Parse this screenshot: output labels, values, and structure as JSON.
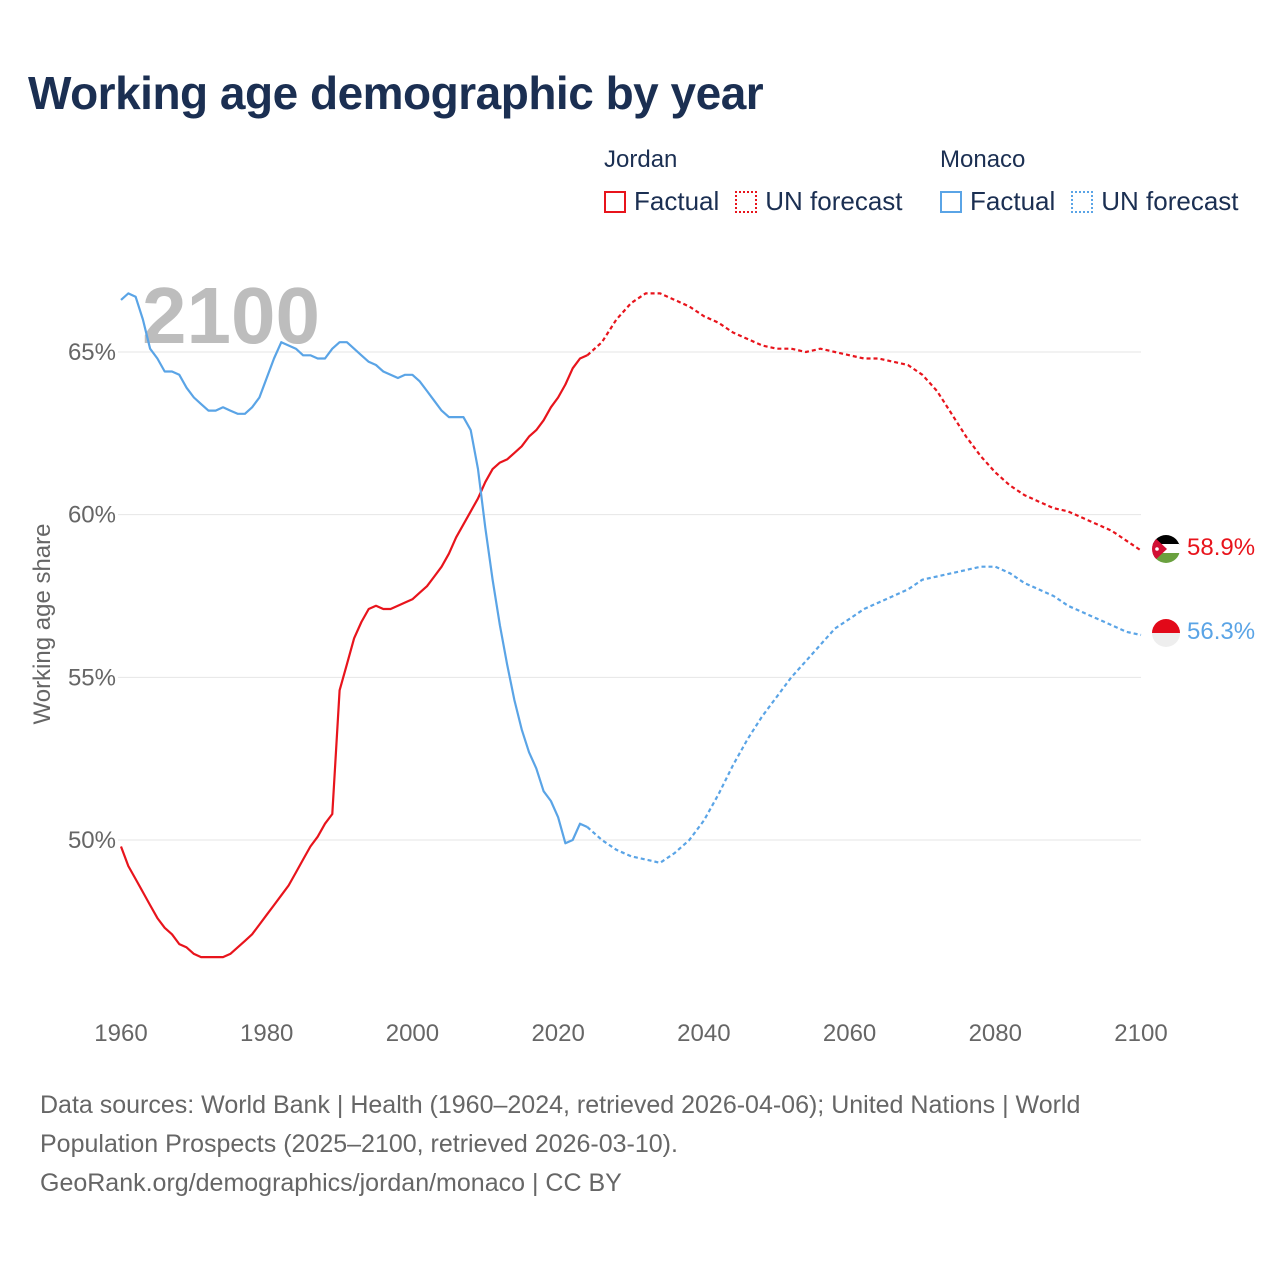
{
  "title": "Working age demographic by year",
  "legend": {
    "jordan": {
      "name": "Jordan",
      "factual": "Factual",
      "forecast": "UN forecast",
      "color": "#e8141c"
    },
    "monaco": {
      "name": "Monaco",
      "factual": "Factual",
      "forecast": "UN forecast",
      "color": "#5aa4e6"
    }
  },
  "sources": {
    "line1": "Data sources: World Bank | Health (1960–2024, retrieved 2026-04-06); United Nations | World",
    "line2": "Population Prospects (2025–2100, retrieved 2026-03-10).",
    "line3": "GeoRank.org/demographics/jordan/monaco | CC BY"
  },
  "chart_data": {
    "type": "line",
    "title": "Working age demographic by year",
    "ylabel": "Working age share",
    "xlabel": "",
    "year_label": "2100",
    "xlim": [
      1960,
      2100
    ],
    "ylim": [
      45,
      67.5
    ],
    "x_ticks": [
      1960,
      1980,
      2000,
      2020,
      2040,
      2060,
      2080,
      2100
    ],
    "x_tick_labels": [
      "1960",
      "1980",
      "2000",
      "2020",
      "2040",
      "2060",
      "2080",
      "2100"
    ],
    "y_ticks": [
      50,
      55,
      60,
      65
    ],
    "y_tick_labels": [
      "50%",
      "55%",
      "60%",
      "65%"
    ],
    "grid": true,
    "series": [
      {
        "name": "Jordan",
        "color": "#e8141c",
        "end_label": "58.9%",
        "factual": {
          "x": [
            1960,
            1961,
            1962,
            1963,
            1964,
            1965,
            1966,
            1967,
            1968,
            1969,
            1970,
            1971,
            1972,
            1973,
            1974,
            1975,
            1976,
            1977,
            1978,
            1979,
            1980,
            1981,
            1982,
            1983,
            1984,
            1985,
            1986,
            1987,
            1988,
            1989,
            1990,
            1991,
            1992,
            1993,
            1994,
            1995,
            1996,
            1997,
            1998,
            1999,
            2000,
            2001,
            2002,
            2003,
            2004,
            2005,
            2006,
            2007,
            2008,
            2009,
            2010,
            2011,
            2012,
            2013,
            2014,
            2015,
            2016,
            2017,
            2018,
            2019,
            2020,
            2021,
            2022,
            2023,
            2024
          ],
          "y": [
            49.8,
            49.2,
            48.8,
            48.4,
            48.0,
            47.6,
            47.3,
            47.1,
            46.8,
            46.7,
            46.5,
            46.4,
            46.4,
            46.4,
            46.4,
            46.5,
            46.7,
            46.9,
            47.1,
            47.4,
            47.7,
            48.0,
            48.3,
            48.6,
            49.0,
            49.4,
            49.8,
            50.1,
            50.5,
            50.8,
            54.6,
            55.4,
            56.2,
            56.7,
            57.1,
            57.2,
            57.1,
            57.1,
            57.2,
            57.3,
            57.4,
            57.6,
            57.8,
            58.1,
            58.4,
            58.8,
            59.3,
            59.7,
            60.1,
            60.5,
            61.0,
            61.4,
            61.6,
            61.7,
            61.9,
            62.1,
            62.4,
            62.6,
            62.9,
            63.3,
            63.6,
            64.0,
            64.5,
            64.8,
            64.9
          ],
          "style": "solid"
        },
        "forecast": {
          "x": [
            2024,
            2026,
            2028,
            2030,
            2032,
            2034,
            2036,
            2038,
            2040,
            2042,
            2044,
            2046,
            2048,
            2050,
            2052,
            2054,
            2056,
            2058,
            2060,
            2062,
            2064,
            2066,
            2068,
            2070,
            2072,
            2074,
            2076,
            2078,
            2080,
            2082,
            2084,
            2086,
            2088,
            2090,
            2092,
            2094,
            2096,
            2098,
            2100
          ],
          "y": [
            64.9,
            65.3,
            66.0,
            66.5,
            66.8,
            66.8,
            66.6,
            66.4,
            66.1,
            65.9,
            65.6,
            65.4,
            65.2,
            65.1,
            65.1,
            65.0,
            65.1,
            65.0,
            64.9,
            64.8,
            64.8,
            64.7,
            64.6,
            64.3,
            63.8,
            63.1,
            62.4,
            61.8,
            61.3,
            60.9,
            60.6,
            60.4,
            60.2,
            60.1,
            59.9,
            59.7,
            59.5,
            59.2,
            58.9
          ],
          "style": "dotted"
        }
      },
      {
        "name": "Monaco",
        "color": "#5aa4e6",
        "end_label": "56.3%",
        "factual": {
          "x": [
            1960,
            1961,
            1962,
            1963,
            1964,
            1965,
            1966,
            1967,
            1968,
            1969,
            1970,
            1971,
            1972,
            1973,
            1974,
            1975,
            1976,
            1977,
            1978,
            1979,
            1980,
            1981,
            1982,
            1983,
            1984,
            1985,
            1986,
            1987,
            1988,
            1989,
            1990,
            1991,
            1992,
            1993,
            1994,
            1995,
            1996,
            1997,
            1998,
            1999,
            2000,
            2001,
            2002,
            2003,
            2004,
            2005,
            2006,
            2007,
            2008,
            2009,
            2010,
            2011,
            2012,
            2013,
            2014,
            2015,
            2016,
            2017,
            2018,
            2019,
            2020,
            2021,
            2022,
            2023,
            2024
          ],
          "y": [
            66.6,
            66.8,
            66.7,
            66.0,
            65.1,
            64.8,
            64.4,
            64.4,
            64.3,
            63.9,
            63.6,
            63.4,
            63.2,
            63.2,
            63.3,
            63.2,
            63.1,
            63.1,
            63.3,
            63.6,
            64.2,
            64.8,
            65.3,
            65.2,
            65.1,
            64.9,
            64.9,
            64.8,
            64.8,
            65.1,
            65.3,
            65.3,
            65.1,
            64.9,
            64.7,
            64.6,
            64.4,
            64.3,
            64.2,
            64.3,
            64.3,
            64.1,
            63.8,
            63.5,
            63.2,
            63.0,
            63.0,
            63.0,
            62.6,
            61.4,
            59.6,
            58.0,
            56.6,
            55.4,
            54.3,
            53.4,
            52.7,
            52.2,
            51.5,
            51.2,
            50.7,
            49.9,
            50.0,
            50.5,
            50.4
          ],
          "style": "solid"
        },
        "forecast": {
          "x": [
            2024,
            2026,
            2028,
            2030,
            2032,
            2034,
            2036,
            2038,
            2040,
            2042,
            2044,
            2046,
            2048,
            2050,
            2052,
            2054,
            2056,
            2058,
            2060,
            2062,
            2064,
            2066,
            2068,
            2070,
            2072,
            2074,
            2076,
            2078,
            2080,
            2082,
            2084,
            2086,
            2088,
            2090,
            2092,
            2094,
            2096,
            2098,
            2100
          ],
          "y": [
            50.4,
            50.0,
            49.7,
            49.5,
            49.4,
            49.3,
            49.6,
            50.0,
            50.6,
            51.4,
            52.3,
            53.1,
            53.8,
            54.4,
            55.0,
            55.5,
            56.0,
            56.5,
            56.8,
            57.1,
            57.3,
            57.5,
            57.7,
            58.0,
            58.1,
            58.2,
            58.3,
            58.4,
            58.4,
            58.2,
            57.9,
            57.7,
            57.5,
            57.2,
            57.0,
            56.8,
            56.6,
            56.4,
            56.3
          ],
          "style": "dotted"
        }
      }
    ]
  }
}
